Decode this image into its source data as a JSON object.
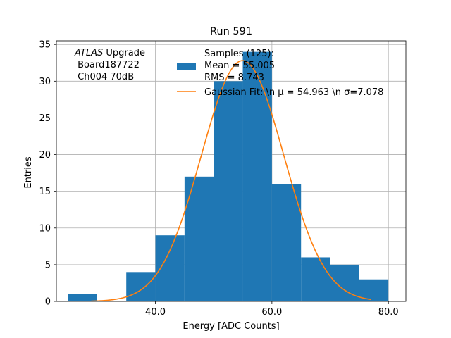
{
  "chart_data": {
    "type": "bar",
    "title": "Run 591",
    "xlabel": "Energy [ADC Counts]",
    "ylabel": "Entries",
    "xlim": [
      23,
      83
    ],
    "ylim": [
      0,
      35.5
    ],
    "xticks": [
      40.0,
      60.0,
      80.0
    ],
    "xtick_labels": [
      "40.0",
      "60.0",
      "80.0"
    ],
    "yticks": [
      0,
      5,
      10,
      15,
      20,
      25,
      30,
      35
    ],
    "ytick_labels": [
      "0",
      "5",
      "10",
      "15",
      "20",
      "25",
      "30",
      "35"
    ],
    "grid": true,
    "bins": [
      {
        "x0": 25,
        "x1": 30,
        "count": 1
      },
      {
        "x0": 30,
        "x1": 35,
        "count": 0
      },
      {
        "x0": 35,
        "x1": 40,
        "count": 4
      },
      {
        "x0": 40,
        "x1": 45,
        "count": 9
      },
      {
        "x0": 45,
        "x1": 50,
        "count": 17
      },
      {
        "x0": 50,
        "x1": 55,
        "count": 30
      },
      {
        "x0": 55,
        "x1": 60,
        "count": 34
      },
      {
        "x0": 60,
        "x1": 65,
        "count": 16
      },
      {
        "x0": 65,
        "x1": 70,
        "count": 6
      },
      {
        "x0": 70,
        "x1": 75,
        "count": 5
      },
      {
        "x0": 75,
        "x1": 80,
        "count": 3
      }
    ],
    "fit": {
      "type": "gaussian",
      "mu": 54.963,
      "sigma": 7.078,
      "amplitude": 32.8,
      "x_range": [
        29,
        77
      ]
    },
    "series_colors": {
      "histogram": "#1f77b4",
      "fit": "#ff7f0e"
    },
    "annotation_lines": [
      "ATLAS Upgrade",
      " Board187722",
      " Ch004 70dB"
    ],
    "legend": {
      "placement": "top-right",
      "entries": [
        {
          "kind": "patch",
          "lines": [
            "Samples (125):",
            " Mean = 55.005",
            " RMS = 8.743"
          ]
        },
        {
          "kind": "line",
          "lines": [
            "Gaussian Fit: \\n μ = 54.963 \\n σ=7.078"
          ]
        }
      ]
    }
  }
}
